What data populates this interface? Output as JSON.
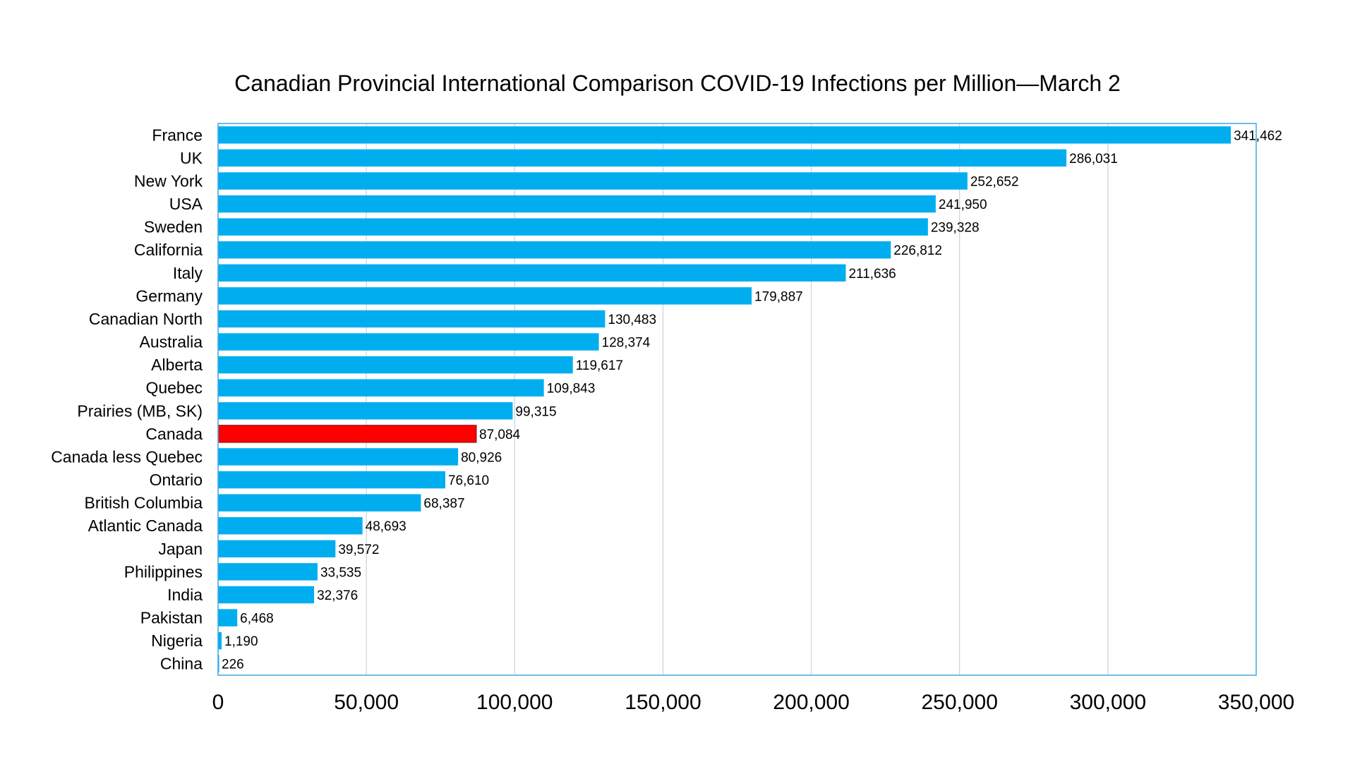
{
  "chart_data": {
    "type": "bar",
    "orientation": "horizontal",
    "title": "Canadian Provincial International Comparison COVID-19 Infections per Million—March 2",
    "categories": [
      "France",
      "UK",
      "New York",
      "USA",
      "Sweden",
      "California",
      "Italy",
      "Germany",
      "Canadian North",
      "Australia",
      "Alberta",
      "Quebec",
      "Prairies (MB, SK)",
      "Canada",
      "Canada less Quebec",
      "Ontario",
      "British Columbia",
      "Atlantic Canada",
      "Japan",
      "Philippines",
      "India",
      "Pakistan",
      "Nigeria",
      "China"
    ],
    "values": [
      341462,
      286031,
      252652,
      241950,
      239328,
      226812,
      211636,
      179887,
      130483,
      128374,
      119617,
      109843,
      99315,
      87084,
      80926,
      76610,
      68387,
      48693,
      39572,
      33535,
      32376,
      6468,
      1190,
      226
    ],
    "value_labels": [
      "341,462",
      "286,031",
      "252,652",
      "241,950",
      "239,328",
      "226,812",
      "211,636",
      "179,887",
      "130,483",
      "128,374",
      "119,617",
      "109,843",
      "99,315",
      "87,084",
      "80,926",
      "76,610",
      "68,387",
      "48,693",
      "39,572",
      "33,535",
      "32,376",
      "6,468",
      "1,190",
      "226"
    ],
    "xlim": [
      0,
      350000
    ],
    "xticks": [
      0,
      50000,
      100000,
      150000,
      200000,
      250000,
      300000,
      350000
    ],
    "xtick_labels": [
      "0",
      "50,000",
      "100,000",
      "150,000",
      "200,000",
      "250,000",
      "300,000",
      "350,000"
    ],
    "xlabel": "",
    "ylabel": "",
    "grid": "vertical",
    "legend": "none",
    "highlight_category": "Canada",
    "colors": {
      "bar": "#00AEEF",
      "highlight": "#FF0000",
      "frame": "#3BA9E0",
      "grid": "#C8D3DD",
      "text": "#000000"
    }
  }
}
